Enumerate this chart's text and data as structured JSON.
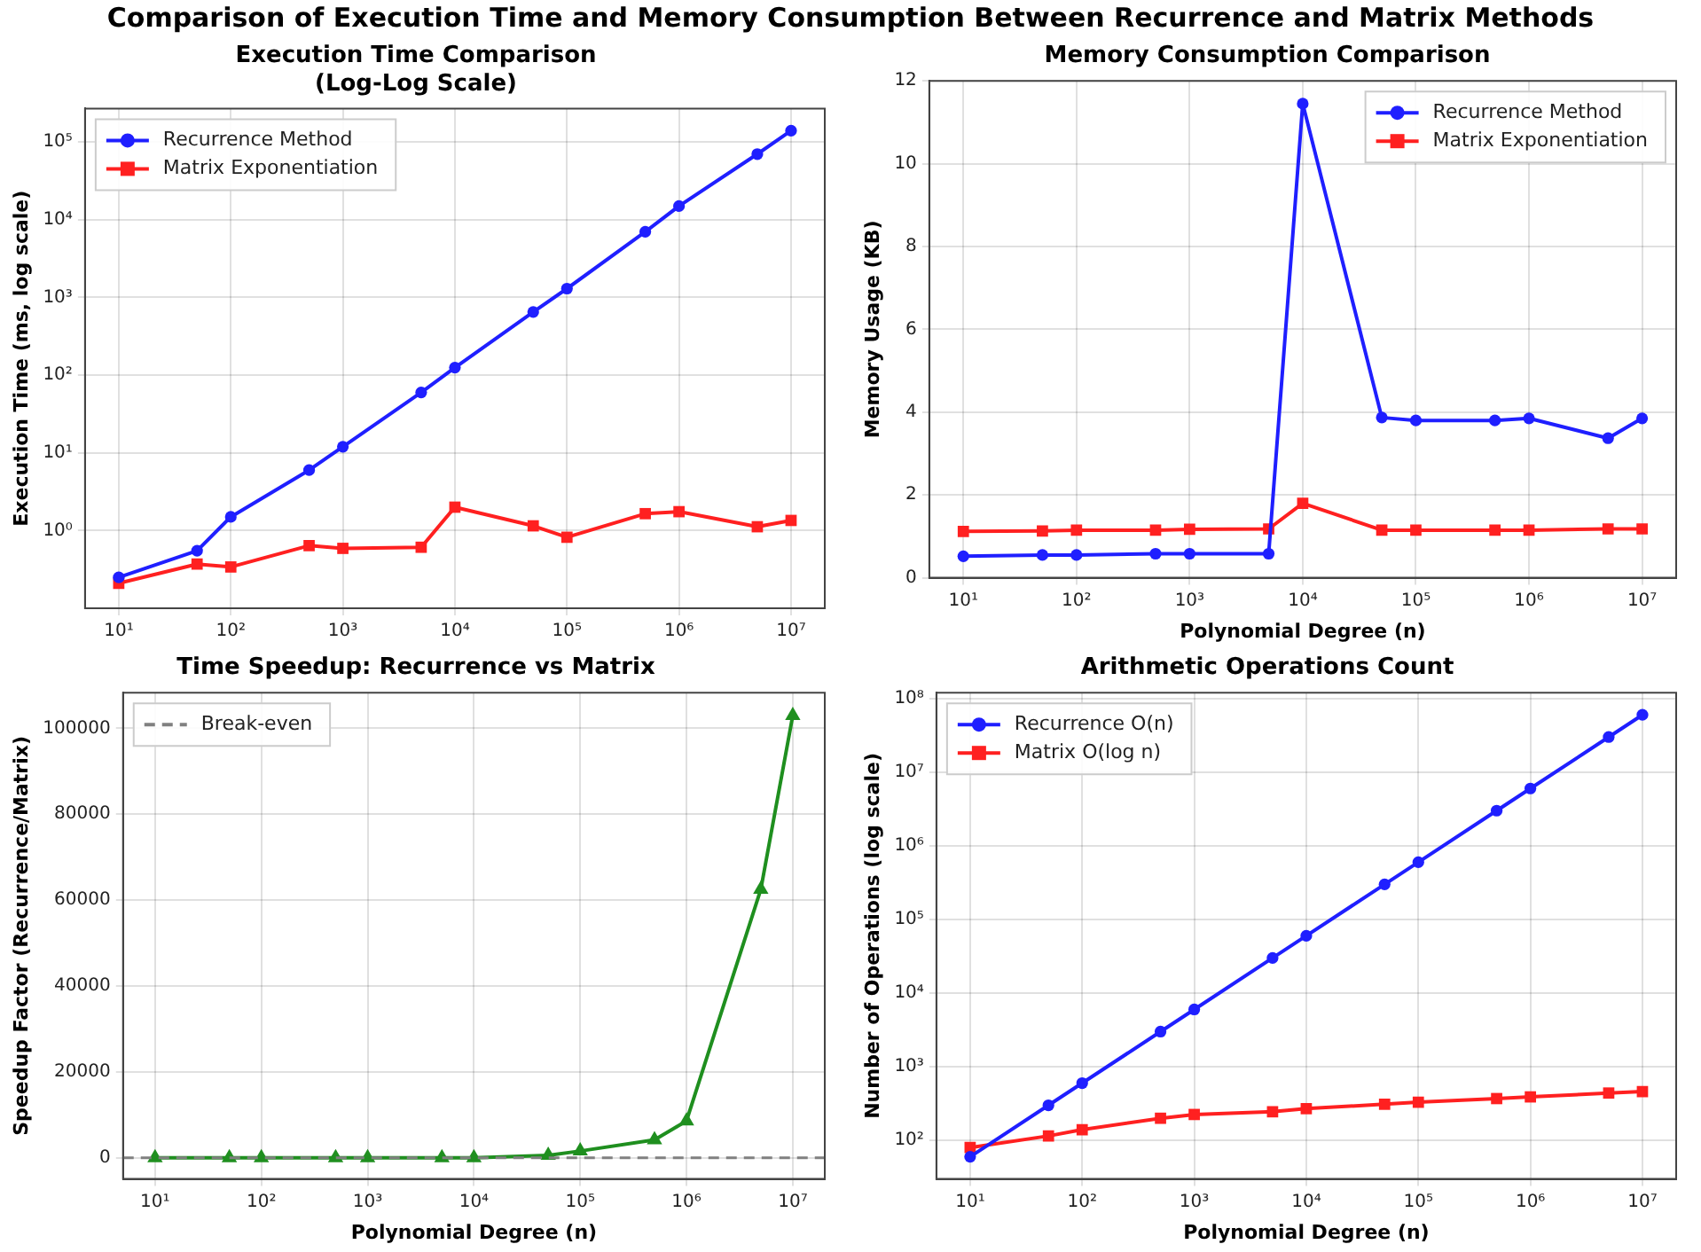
{
  "chart_data": [
    {
      "type": "line",
      "title": "Execution Time Comparison\n(Log-Log Scale)",
      "xlabel": null,
      "ylabel": "Execution Time (ms, log scale)",
      "annotations": [
        "Comparison of Execution Time and Memory Consumption Between Recurrence and Matrix Methods"
      ],
      "x": [
        10,
        50,
        100,
        500,
        1000,
        5000,
        10000,
        50000,
        100000,
        500000,
        1000000,
        5000000,
        10000000
      ],
      "series": [
        {
          "name": "Recurrence Method",
          "color": "#1f1fff",
          "marker": "circle",
          "values": [
            0.25,
            0.55,
            1.5,
            6,
            12,
            60,
            125,
            650,
            1300,
            7000,
            15000,
            70000,
            140000
          ]
        },
        {
          "name": "Matrix Exponentiation",
          "color": "#ff2020",
          "marker": "square",
          "values": [
            0.21,
            0.37,
            0.34,
            0.64,
            0.59,
            0.61,
            2.0,
            1.15,
            0.82,
            1.65,
            1.75,
            1.12,
            1.35
          ]
        }
      ],
      "log": "xy",
      "xlim": [
        5,
        20000000
      ],
      "ylim": [
        0.1,
        270000
      ],
      "xticks": [
        {
          "value": 10,
          "label": "10¹"
        },
        {
          "value": 100,
          "label": "10²"
        },
        {
          "value": 1000,
          "label": "10³"
        },
        {
          "value": 10000,
          "label": "10⁴"
        },
        {
          "value": 100000,
          "label": "10⁵"
        },
        {
          "value": 1000000,
          "label": "10⁶"
        },
        {
          "value": 10000000,
          "label": "10⁷"
        }
      ],
      "yticks": [
        {
          "value": 1,
          "label": "10⁰"
        },
        {
          "value": 10,
          "label": "10¹"
        },
        {
          "value": 100,
          "label": "10²"
        },
        {
          "value": 1000,
          "label": "10³"
        },
        {
          "value": 10000,
          "label": "10⁴"
        },
        {
          "value": 100000,
          "label": "10⁵"
        }
      ],
      "grid": true,
      "legend": "top left"
    },
    {
      "type": "line",
      "title": "Memory Consumption Comparison",
      "xlabel": "Polynomial Degree (n)",
      "ylabel": "Memory Usage (KB)",
      "x": [
        10,
        50,
        100,
        500,
        1000,
        5000,
        10000,
        50000,
        100000,
        500000,
        1000000,
        5000000,
        10000000
      ],
      "series": [
        {
          "name": "Recurrence Method",
          "color": "#1f1fff",
          "marker": "circle",
          "values": [
            0.52,
            0.55,
            0.55,
            0.58,
            0.58,
            0.58,
            11.45,
            3.87,
            3.8,
            3.8,
            3.85,
            3.37,
            3.85
          ]
        },
        {
          "name": "Matrix Exponentiation",
          "color": "#ff2020",
          "marker": "square",
          "values": [
            1.12,
            1.13,
            1.15,
            1.15,
            1.17,
            1.18,
            1.8,
            1.15,
            1.15,
            1.15,
            1.15,
            1.18,
            1.18
          ]
        }
      ],
      "log": "x",
      "xlim": [
        5,
        20000000
      ],
      "ylim": [
        0,
        12
      ],
      "xticks": [
        {
          "value": 10,
          "label": "10¹"
        },
        {
          "value": 100,
          "label": "10²"
        },
        {
          "value": 1000,
          "label": "10³"
        },
        {
          "value": 10000,
          "label": "10⁴"
        },
        {
          "value": 100000,
          "label": "10⁵"
        },
        {
          "value": 1000000,
          "label": "10⁶"
        },
        {
          "value": 10000000,
          "label": "10⁷"
        }
      ],
      "yticks": [
        0,
        2,
        4,
        6,
        8,
        10,
        12
      ],
      "grid": true,
      "legend": "top right"
    },
    {
      "type": "line",
      "title": "Time Speedup: Recurrence vs Matrix",
      "xlabel": "Polynomial Degree (n)",
      "ylabel": "Speedup Factor (Recurrence/Matrix)",
      "x": [
        10,
        50,
        100,
        500,
        1000,
        5000,
        10000,
        50000,
        100000,
        500000,
        1000000,
        5000000,
        10000000
      ],
      "series": [
        {
          "color": "#1f8f1f",
          "marker": "triangle",
          "values": [
            0,
            0,
            0,
            0,
            0,
            0,
            0,
            600,
            1600,
            4200,
            8600,
            62500,
            103000
          ]
        }
      ],
      "ref_lines": [
        {
          "axis": "y",
          "value": 0,
          "label": "Break-even",
          "color": "#808080",
          "line_style": "dashed"
        }
      ],
      "log": "x",
      "xlim": [
        5,
        20000000
      ],
      "ylim": [
        -4900,
        108300
      ],
      "xticks": [
        {
          "value": 10,
          "label": "10¹"
        },
        {
          "value": 100,
          "label": "10²"
        },
        {
          "value": 1000,
          "label": "10³"
        },
        {
          "value": 10000,
          "label": "10⁴"
        },
        {
          "value": 100000,
          "label": "10⁵"
        },
        {
          "value": 1000000,
          "label": "10⁶"
        },
        {
          "value": 10000000,
          "label": "10⁷"
        }
      ],
      "yticks": [
        0,
        20000,
        40000,
        60000,
        80000,
        100000
      ],
      "grid": true,
      "legend": "top left"
    },
    {
      "type": "line",
      "title": "Arithmetic Operations Count",
      "xlabel": "Polynomial Degree (n)",
      "ylabel": "Number of Operations (log scale)",
      "x": [
        10,
        50,
        100,
        500,
        1000,
        5000,
        10000,
        50000,
        100000,
        500000,
        1000000,
        5000000,
        10000000
      ],
      "series": [
        {
          "name": "Recurrence O(n)",
          "color": "#1f1fff",
          "marker": "circle",
          "values": [
            60,
            300,
            600,
            3000,
            6000,
            30000,
            60000,
            300000,
            600000,
            3000000,
            6000000,
            30000000,
            60000000
          ]
        },
        {
          "name": "Matrix O(log n)",
          "color": "#ff2020",
          "marker": "square",
          "values": [
            80,
            115,
            140,
            200,
            225,
            245,
            270,
            310,
            330,
            370,
            390,
            440,
            460
          ]
        }
      ],
      "log": "xy",
      "xlim": [
        5,
        20000000
      ],
      "ylim": [
        30,
        120000000
      ],
      "xticks": [
        {
          "value": 10,
          "label": "10¹"
        },
        {
          "value": 100,
          "label": "10²"
        },
        {
          "value": 1000,
          "label": "10³"
        },
        {
          "value": 10000,
          "label": "10⁴"
        },
        {
          "value": 100000,
          "label": "10⁵"
        },
        {
          "value": 1000000,
          "label": "10⁶"
        },
        {
          "value": 10000000,
          "label": "10⁷"
        }
      ],
      "yticks": [
        {
          "value": 100,
          "label": "10²"
        },
        {
          "value": 1000,
          "label": "10³"
        },
        {
          "value": 10000,
          "label": "10⁴"
        },
        {
          "value": 100000,
          "label": "10⁵"
        },
        {
          "value": 1000000,
          "label": "10⁶"
        },
        {
          "value": 10000000,
          "label": "10⁷"
        },
        {
          "value": 100000000,
          "label": "10⁸"
        }
      ],
      "grid": true,
      "legend": "top left"
    }
  ]
}
